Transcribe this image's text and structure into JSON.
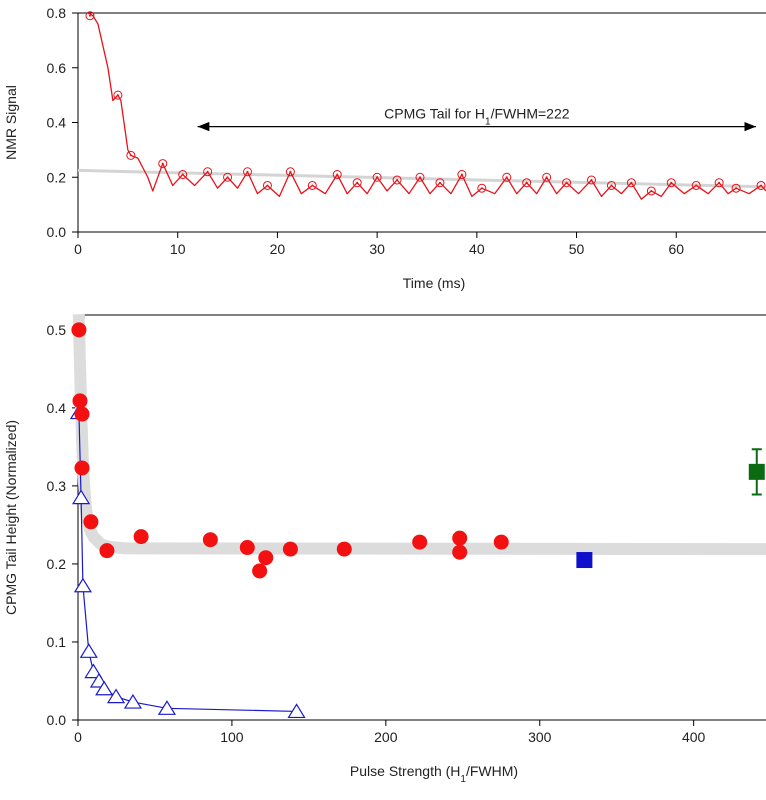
{
  "chart_data": [
    {
      "type": "line",
      "xlabel": "Time (ms)",
      "ylabel": "NMR Signal",
      "xlim": [
        0,
        69
      ],
      "ylim": [
        0,
        0.8
      ],
      "xticks": [
        0,
        10,
        20,
        30,
        40,
        50,
        60
      ],
      "yticks": [
        {
          "value": 0,
          "label": "0.0"
        },
        0.2,
        0.4,
        0.6,
        0.8
      ],
      "annotation": {
        "text": [
          "CPMG Tail for H",
          "1",
          "/FWHM=222"
        ],
        "x": [
          12,
          68
        ],
        "y": 0.385
      },
      "series": [
        {
          "color": "#d4d4d4",
          "line_width": 3,
          "x": [
            0,
            69
          ],
          "values": [
            0.225,
            0.165
          ]
        },
        {
          "color": "#e8121a",
          "line_width": 1.3,
          "x": [
            1.0,
            1.5,
            2,
            3,
            3.5,
            4,
            4.3,
            5,
            5.3,
            6,
            7,
            7.5,
            8.5,
            9.5,
            10.5,
            11.7,
            13,
            14,
            15,
            16,
            17,
            18,
            19,
            20.2,
            21.3,
            22.4,
            23.5,
            24.8,
            26,
            27,
            28,
            29,
            30,
            31,
            32,
            33.2,
            34.3,
            35.3,
            36.3,
            37.4,
            38.5,
            39.5,
            40.5,
            41.8,
            43,
            44,
            45,
            46,
            47,
            48,
            49,
            50.2,
            51.5,
            52.5,
            53.5,
            54.5,
            55.5,
            56.5,
            57.5,
            58.5,
            59.5,
            60.8,
            62,
            63.2,
            64.3,
            65.2,
            66,
            67.3,
            68.5,
            69
          ],
          "values": [
            0.8,
            0.79,
            0.76,
            0.6,
            0.48,
            0.5,
            0.48,
            0.3,
            0.28,
            0.27,
            0.2,
            0.15,
            0.25,
            0.17,
            0.21,
            0.17,
            0.22,
            0.16,
            0.2,
            0.16,
            0.22,
            0.14,
            0.17,
            0.13,
            0.22,
            0.14,
            0.17,
            0.14,
            0.21,
            0.14,
            0.18,
            0.14,
            0.2,
            0.15,
            0.19,
            0.14,
            0.2,
            0.14,
            0.18,
            0.14,
            0.21,
            0.13,
            0.16,
            0.14,
            0.2,
            0.14,
            0.18,
            0.14,
            0.2,
            0.14,
            0.18,
            0.14,
            0.19,
            0.13,
            0.17,
            0.14,
            0.18,
            0.12,
            0.15,
            0.13,
            0.18,
            0.14,
            0.17,
            0.14,
            0.18,
            0.14,
            0.16,
            0.14,
            0.17,
            0.15
          ]
        },
        {
          "color": "#e8121a",
          "marker": "circle-open",
          "x": [
            1.2,
            4,
            5.3,
            8.5,
            10.5,
            13,
            15,
            17,
            19,
            21.3,
            23.5,
            26,
            28,
            30,
            32,
            34.3,
            36.3,
            38.5,
            40.5,
            43,
            45,
            47,
            49,
            51.5,
            53.5,
            55.5,
            57.5,
            59.5,
            62,
            64.3,
            66,
            68.5
          ],
          "values": [
            0.79,
            0.5,
            0.28,
            0.25,
            0.21,
            0.22,
            0.2,
            0.22,
            0.17,
            0.22,
            0.17,
            0.21,
            0.18,
            0.2,
            0.19,
            0.2,
            0.18,
            0.21,
            0.16,
            0.2,
            0.18,
            0.2,
            0.18,
            0.19,
            0.17,
            0.18,
            0.15,
            0.18,
            0.17,
            0.18,
            0.16,
            0.17
          ]
        }
      ]
    },
    {
      "type": "scatter",
      "xlabel": [
        "Pulse Strength (H",
        "1",
        "/FWHM)"
      ],
      "ylabel": "CPMG Tail Height (Normalized)",
      "xlim": [
        0,
        447
      ],
      "ylim": [
        0,
        0.519
      ],
      "xticks": [
        0,
        100,
        200,
        300,
        400
      ],
      "yticks": [
        {
          "value": 0,
          "label": "0.0"
        },
        0.1,
        0.2,
        0.3,
        0.4,
        0.5
      ],
      "series": [
        {
          "color": "#dcdcdc",
          "line_width": 12,
          "x": [
            0.5,
            1,
            2,
            3,
            4,
            5,
            6,
            8,
            10,
            15,
            20,
            30,
            447
          ],
          "values": [
            0.52,
            0.48,
            0.4,
            0.34,
            0.3,
            0.275,
            0.26,
            0.243,
            0.235,
            0.225,
            0.222,
            0.22,
            0.219
          ]
        },
        {
          "color": "#1a1acc",
          "line_width": 1.2,
          "marker": "triangle-open",
          "x": [
            0.6,
            2,
            3.2,
            7,
            10,
            13.6,
            17,
            24.7,
            35.7,
            57.8,
            142
          ],
          "values": [
            0.394,
            0.285,
            0.172,
            0.088,
            0.062,
            0.05,
            0.04,
            0.03,
            0.023,
            0.015,
            0.011
          ]
        },
        {
          "color": "#f21010",
          "marker": "circle",
          "x": [
            0.6,
            1.3,
            2.6,
            2.6,
            8.4,
            18.8,
            41,
            86,
            110,
            118,
            122,
            138,
            173,
            222,
            248,
            248,
            275
          ],
          "values": [
            0.5,
            0.409,
            0.392,
            0.323,
            0.254,
            0.217,
            0.235,
            0.231,
            0.221,
            0.191,
            0.208,
            0.219,
            0.219,
            0.228,
            0.233,
            0.215,
            0.228
          ]
        },
        {
          "color": "#1010cc",
          "marker": "square",
          "x": [
            329
          ],
          "values": [
            0.205
          ]
        },
        {
          "color": "#0b6b12",
          "marker": "square",
          "x": [
            441
          ],
          "values": [
            0.318
          ],
          "errors": [
            0.029
          ]
        }
      ]
    }
  ]
}
